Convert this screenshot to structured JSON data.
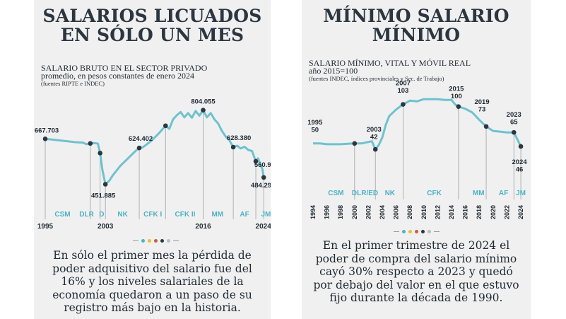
{
  "colors": {
    "line": "#6cc3cf",
    "marker": "#2b3640",
    "label": "#1f2a33",
    "era": "#4bb3c4",
    "panel_bg": "#f0f0f0",
    "dots": [
      "#4bb3c4",
      "#e6c229",
      "#d6573b",
      "#2b3640",
      "#bdbdbd"
    ]
  },
  "left": {
    "title_lines": [
      "SALARIOS LICUADOS",
      "EN SÓLO UN MES"
    ],
    "subtitle_lines": [
      "SALARIO BRUTO EN EL SECTOR PRIVADO",
      "promedio, en pesos constantes de enero 2024"
    ],
    "source": "(fuentes RIPTE e INDEC)",
    "body": "En sólo el primer mes la pérdida de poder adquisitivo del salario fue del 16% y los niveles salariales de la economía quedaron a un paso de su registro más bajo en la historia."
  },
  "right": {
    "title_lines": [
      "MÍNIMO SALARIO",
      "MÍNIMO"
    ],
    "subtitle_lines": [
      "SALARIO MÍNIMO, VITAL Y MÓVIL REAL",
      "año 2015=100"
    ],
    "source": "(fuentes INDEC, índices provinciales y Sec. de Trabajo)",
    "body": "En el primer trimestre de 2024 el poder de compra del salario mínimo cayó 30% respecto a 2023 y quedó por debajo del valor en el que estuvo fijo durante la década de 1990."
  },
  "chart_data": [
    {
      "type": "line",
      "title": "SALARIO BRUTO EN EL SECTOR PRIVADO",
      "subtitle": "promedio, en pesos constantes de enero 2024",
      "x_ticks": [
        "1995",
        "2003",
        "2016",
        "2024"
      ],
      "x_tick_values": [
        1995,
        2003,
        2016,
        2024
      ],
      "ylim": [
        420000,
        830000
      ],
      "xlim": [
        1995,
        2024.5
      ],
      "series": [
        {
          "x": [
            1995,
            1996,
            1997,
            1998,
            1999,
            2000,
            2000.5,
            2001,
            2001.5,
            2002,
            2002.3,
            2002.6,
            2003,
            2003.5,
            2004,
            2005,
            2006,
            2007,
            2007.5,
            2008,
            2009,
            2010,
            2011,
            2011.5,
            2012,
            2012.5,
            2013,
            2013.5,
            2014,
            2014.5,
            2015,
            2015.5,
            2016,
            2016.5,
            2017,
            2017.5,
            2018,
            2018.5,
            2019,
            2019.5,
            2020,
            2020.5,
            2021,
            2021.5,
            2022,
            2022.5,
            2023,
            2023.3,
            2023.6,
            2023.9,
            2024.05
          ],
          "y": [
            667703,
            664000,
            660000,
            656000,
            652000,
            650000,
            642000,
            646000,
            648000,
            645000,
            600000,
            520000,
            451885,
            468000,
            495000,
            540000,
            575000,
            610000,
            624402,
            628000,
            655000,
            690000,
            730000,
            715000,
            760000,
            780000,
            795000,
            770000,
            790000,
            768000,
            800000,
            778000,
            804055,
            770000,
            790000,
            760000,
            740000,
            705000,
            678000,
            660000,
            628380,
            635000,
            622000,
            630000,
            615000,
            610000,
            560932,
            575000,
            548000,
            520000,
            484298
          ]
        }
      ],
      "annotations": [
        {
          "label": "667.703",
          "x": 1995,
          "y": 667703
        },
        {
          "label": "451.885",
          "x": 2003,
          "y": 451885
        },
        {
          "label": "624.402",
          "x": 2007.5,
          "y": 624402
        },
        {
          "label": "804.055",
          "x": 2016,
          "y": 804055
        },
        {
          "label": "628.380",
          "x": 2020,
          "y": 628380
        },
        {
          "label": "560.932",
          "x": 2023,
          "y": 560932
        },
        {
          "label": "484.298",
          "x": 2024.05,
          "y": 484298
        }
      ],
      "marker_x": [
        1995,
        2001,
        2002.3,
        2003,
        2007.5,
        2011,
        2016,
        2020,
        2023,
        2024.05
      ],
      "eras": [
        {
          "label": "CSM",
          "x": 1997.3
        },
        {
          "label": "DLR",
          "x": 2000.5
        },
        {
          "label": "D",
          "x": 2002.5
        },
        {
          "label": "NK",
          "x": 2005.3
        },
        {
          "label": "CFK I",
          "x": 2009.3
        },
        {
          "label": "CFK II",
          "x": 2013.6
        },
        {
          "label": "MM",
          "x": 2017.9
        },
        {
          "label": "AF",
          "x": 2021.5
        },
        {
          "label": "JM",
          "x": 2024.35
        }
      ]
    },
    {
      "type": "line",
      "title": "SALARIO MÍNIMO, VITAL Y MÓVIL REAL",
      "subtitle": "año 2015=100",
      "x_ticks": [
        "1994",
        "1996",
        "1998",
        "2000",
        "2002",
        "2004",
        "2006",
        "2008",
        "2010",
        "2012",
        "2014",
        "2016",
        "2018",
        "2020",
        "2022",
        "2024"
      ],
      "x_tick_values": [
        1994,
        1996,
        1998,
        2000,
        2002,
        2004,
        2006,
        2008,
        2010,
        2012,
        2014,
        2016,
        2018,
        2020,
        2022,
        2024
      ],
      "ylim": [
        0,
        115
      ],
      "xlim": [
        1994,
        2024.3
      ],
      "series": [
        {
          "x": [
            1994,
            1995,
            1996,
            1997,
            1998,
            1999,
            2000,
            2001,
            2002,
            2002.5,
            2003,
            2003.5,
            2004,
            2004.5,
            2005,
            2006,
            2007,
            2008,
            2009,
            2010,
            2011,
            2012,
            2013,
            2014,
            2014.5,
            2015,
            2016,
            2017,
            2018,
            2019,
            2020,
            2021,
            2022,
            2023,
            2024
          ],
          "y": [
            50,
            50,
            49,
            49,
            49,
            49.5,
            50,
            50,
            52,
            53,
            42,
            48,
            58,
            75,
            87,
            96,
            103,
            108,
            107,
            110,
            110,
            110,
            109,
            109,
            103,
            100,
            97,
            92,
            82,
            73,
            67,
            66,
            65,
            65,
            46
          ]
        }
      ],
      "annotations": [
        {
          "label": "1995",
          "sub": "50",
          "x": 1995,
          "y": 50
        },
        {
          "label": "2003",
          "sub": "42",
          "x": 2003,
          "y": 42
        },
        {
          "label": "2007",
          "sub": "103",
          "x": 2007,
          "y": 103
        },
        {
          "label": "2015",
          "sub": "100",
          "x": 2015,
          "y": 100
        },
        {
          "label": "2019",
          "sub": "73",
          "x": 2019,
          "y": 73
        },
        {
          "label": "2023",
          "sub": "65",
          "x": 2023,
          "y": 65
        },
        {
          "label": "2024",
          "sub": "46",
          "x": 2024,
          "y": 46
        }
      ],
      "marker_x": [
        2000,
        2003,
        2007,
        2015,
        2019,
        2023,
        2024
      ],
      "eras": [
        {
          "label": "CSM",
          "x": 1997.3
        },
        {
          "label": "DLR/ED",
          "x": 2001.5
        },
        {
          "label": "NK",
          "x": 2005.1
        },
        {
          "label": "CFK",
          "x": 2011.5
        },
        {
          "label": "MM",
          "x": 2017.9
        },
        {
          "label": "AF",
          "x": 2021.5
        },
        {
          "label": "JM",
          "x": 2024
        }
      ]
    }
  ]
}
